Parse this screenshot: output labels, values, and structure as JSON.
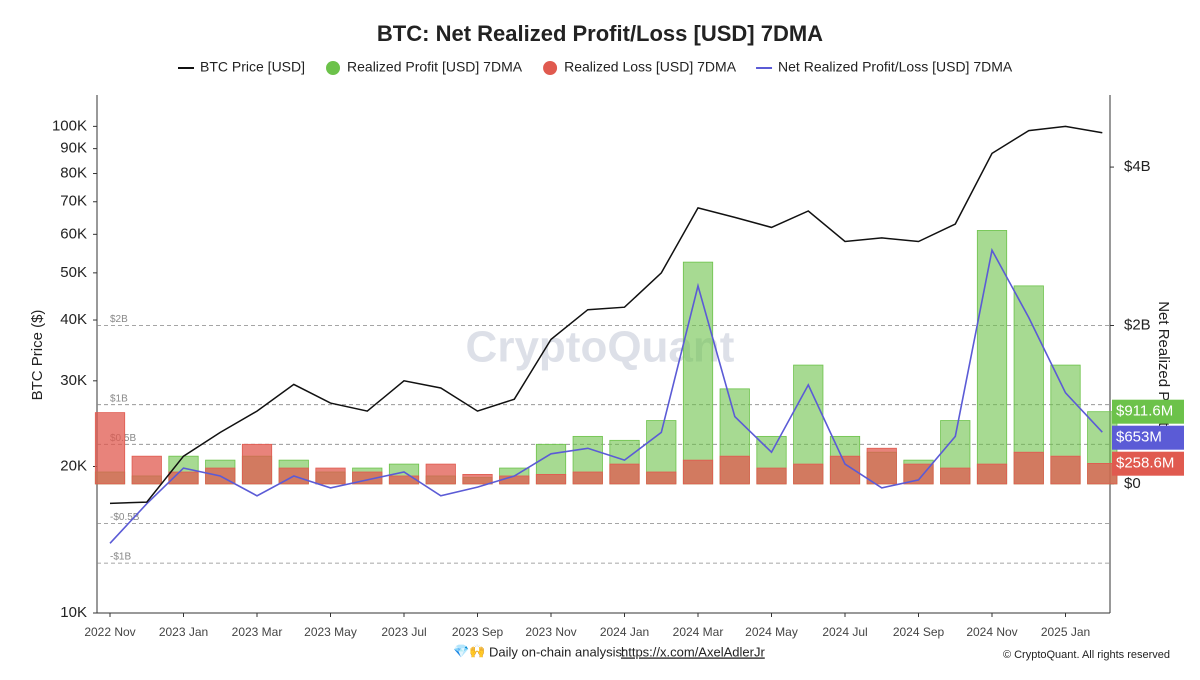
{
  "chart_data": {
    "type": "combo",
    "title": "BTC: Net Realized Profit/Loss [USD] 7DMA",
    "y_label": "BTC Price ($)",
    "y2_label": "Net Realized Profit/L",
    "watermark": "CryptoQuant",
    "footer": {
      "icons": "💎🙌",
      "text": "Daily on-chain analysis:",
      "link": "https://x.com/AxelAdlerJr",
      "copyright": "© CryptoQuant. All rights reserved"
    },
    "x": [
      "2022-11",
      "2022-12",
      "2023-01",
      "2023-02",
      "2023-03",
      "2023-04",
      "2023-05",
      "2023-06",
      "2023-07",
      "2023-08",
      "2023-09",
      "2023-10",
      "2023-11",
      "2023-12",
      "2024-01",
      "2024-02",
      "2024-03",
      "2024-04",
      "2024-05",
      "2024-06",
      "2024-07",
      "2024-08",
      "2024-09",
      "2024-10",
      "2024-11",
      "2024-12",
      "2025-01",
      "2025-02"
    ],
    "xticks": [
      {
        "value": "2022-11",
        "label": "2022 Nov"
      },
      {
        "value": "2023-01",
        "label": "2023 Jan"
      },
      {
        "value": "2023-03",
        "label": "2023 Mar"
      },
      {
        "value": "2023-05",
        "label": "2023 May"
      },
      {
        "value": "2023-07",
        "label": "2023 Jul"
      },
      {
        "value": "2023-09",
        "label": "2023 Sep"
      },
      {
        "value": "2023-11",
        "label": "2023 Nov"
      },
      {
        "value": "2024-01",
        "label": "2024 Jan"
      },
      {
        "value": "2024-03",
        "label": "2024 Mar"
      },
      {
        "value": "2024-05",
        "label": "2024 May"
      },
      {
        "value": "2024-07",
        "label": "2024 Jul"
      },
      {
        "value": "2024-09",
        "label": "2024 Sep"
      },
      {
        "value": "2024-11",
        "label": "2024 Nov"
      },
      {
        "value": "2025-01",
        "label": "2025 Jan"
      }
    ],
    "yscale": "log",
    "ylim": [
      10000,
      116000
    ],
    "yticks": [
      {
        "value": 10000,
        "label": "10K"
      },
      {
        "value": 20000,
        "label": "20K"
      },
      {
        "value": 30000,
        "label": "30K"
      },
      {
        "value": 40000,
        "label": "40K"
      },
      {
        "value": 50000,
        "label": "50K"
      },
      {
        "value": 60000,
        "label": "60K"
      },
      {
        "value": 70000,
        "label": "70K"
      },
      {
        "value": 80000,
        "label": "80K"
      },
      {
        "value": 90000,
        "label": "90K"
      },
      {
        "value": 100000,
        "label": "100K"
      }
    ],
    "y2lim": [
      -1630000000,
      4910000000
    ],
    "y2ticks": [
      {
        "value": 0,
        "label": "$0"
      },
      {
        "value": 2000000000,
        "label": "$2B"
      },
      {
        "value": 4000000000,
        "label": "$4B"
      }
    ],
    "y2grid": [
      {
        "value": 2000000000,
        "label": "$2B"
      },
      {
        "value": 1000000000,
        "label": "$1B"
      },
      {
        "value": 500000000,
        "label": "$0.5B"
      },
      {
        "value": -500000000,
        "label": "-$0.5B"
      },
      {
        "value": -1000000000,
        "label": "-$1B"
      }
    ],
    "legend": "top",
    "series": [
      {
        "name": "BTC Price [USD]",
        "type": "line",
        "axis": "y",
        "color": "#111111",
        "values": [
          16800,
          16900,
          21000,
          23500,
          26000,
          29500,
          27000,
          26000,
          30000,
          29000,
          26000,
          27500,
          36500,
          42000,
          42500,
          50000,
          68000,
          65000,
          62000,
          67000,
          58000,
          59000,
          58000,
          63000,
          88000,
          98000,
          100000,
          97000
        ]
      },
      {
        "name": "Realized Profit [USD] 7DMA",
        "type": "bar",
        "axis": "y2",
        "color": "#6cc24a",
        "values": [
          150000000,
          100000000,
          350000000,
          300000000,
          350000000,
          300000000,
          150000000,
          200000000,
          250000000,
          100000000,
          80000000,
          200000000,
          500000000,
          600000000,
          550000000,
          800000000,
          2800000000,
          1200000000,
          600000000,
          1500000000,
          600000000,
          400000000,
          300000000,
          800000000,
          3200000000,
          2500000000,
          1500000000,
          911600000
        ],
        "value_labels": [
          null,
          null,
          null,
          null,
          null,
          null,
          null,
          null,
          null,
          null,
          null,
          null,
          null,
          null,
          null,
          null,
          null,
          null,
          null,
          null,
          null,
          null,
          null,
          null,
          null,
          null,
          null,
          "$911.6M"
        ]
      },
      {
        "name": "Realized Loss [USD] 7DMA",
        "type": "bar",
        "axis": "y2",
        "color": "#e05a4f",
        "values": [
          900000000,
          350000000,
          150000000,
          200000000,
          500000000,
          200000000,
          200000000,
          150000000,
          100000000,
          250000000,
          120000000,
          100000000,
          120000000,
          150000000,
          250000000,
          150000000,
          300000000,
          350000000,
          200000000,
          250000000,
          350000000,
          450000000,
          250000000,
          200000000,
          250000000,
          400000000,
          350000000,
          258600000
        ],
        "value_labels": [
          null,
          null,
          null,
          null,
          null,
          null,
          null,
          null,
          null,
          null,
          null,
          null,
          null,
          null,
          null,
          null,
          null,
          null,
          null,
          null,
          null,
          null,
          null,
          null,
          null,
          null,
          null,
          "$258.6M"
        ]
      },
      {
        "name": "Net Realized Profit/Loss [USD] 7DMA",
        "type": "line",
        "axis": "y2",
        "color": "#5b5bd6",
        "values": [
          -750000000,
          -250000000,
          200000000,
          100000000,
          -150000000,
          100000000,
          -50000000,
          50000000,
          150000000,
          -150000000,
          -40000000,
          100000000,
          380000000,
          450000000,
          300000000,
          650000000,
          2500000000,
          850000000,
          400000000,
          1250000000,
          250000000,
          -50000000,
          50000000,
          600000000,
          2950000000,
          2100000000,
          1150000000,
          653000000
        ],
        "value_labels": [
          null,
          null,
          null,
          null,
          null,
          null,
          null,
          null,
          null,
          null,
          null,
          null,
          null,
          null,
          null,
          null,
          null,
          null,
          null,
          null,
          null,
          null,
          null,
          null,
          null,
          null,
          null,
          "$653M"
        ]
      }
    ]
  }
}
